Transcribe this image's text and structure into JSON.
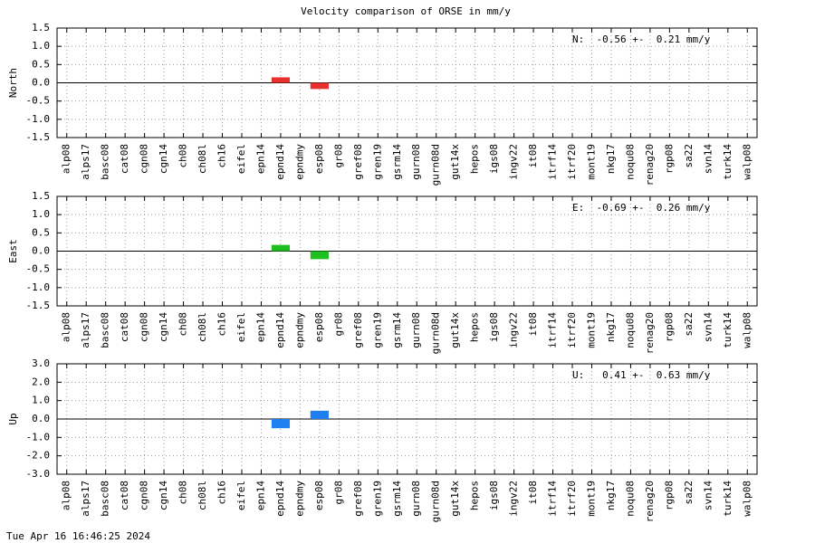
{
  "title": "Velocity comparison of ORSE in mm/y",
  "timestamp": "Tue Apr 16 16:46:25 2024",
  "chart_data": [
    {
      "type": "bar",
      "ylabel": "North",
      "annotation": "N:  -0.56 +-  0.21 mm/y",
      "categories": [
        "alp08",
        "alps17",
        "basc08",
        "cat08",
        "cgn08",
        "cgn14",
        "ch08",
        "ch08l",
        "ch16",
        "eifel",
        "epn14",
        "epnd14",
        "epndmy",
        "esp08",
        "gr08",
        "gref08",
        "gren19",
        "gsrm14",
        "gurn08",
        "gurn08d",
        "gut14x",
        "hepos",
        "igs08",
        "ingv22",
        "it08",
        "itrf14",
        "itrf20",
        "mont19",
        "nkg17",
        "noqu08",
        "renag20",
        "rgp08",
        "sa22",
        "svn14",
        "turk14",
        "walp08"
      ],
      "values": [
        null,
        null,
        null,
        null,
        null,
        null,
        null,
        null,
        null,
        null,
        null,
        0.15,
        null,
        -0.17,
        null,
        null,
        null,
        null,
        null,
        null,
        null,
        null,
        null,
        null,
        null,
        null,
        null,
        null,
        null,
        null,
        null,
        null,
        null,
        null,
        null,
        null
      ],
      "color": "#e8312f",
      "ylim": [
        -1.5,
        1.5
      ],
      "yticks": [
        -1.5,
        {
          "value": -1,
          "label": "-1.0"
        },
        -0.5,
        {
          "value": 0,
          "label": "0.0"
        },
        0.5,
        {
          "value": 1,
          "label": "1.0"
        },
        1.5
      ],
      "grid": true
    },
    {
      "type": "bar",
      "ylabel": "East",
      "annotation": "E:  -0.69 +-  0.26 mm/y",
      "categories": [
        "alp08",
        "alps17",
        "basc08",
        "cat08",
        "cgn08",
        "cgn14",
        "ch08",
        "ch08l",
        "ch16",
        "eifel",
        "epn14",
        "epnd14",
        "epndmy",
        "esp08",
        "gr08",
        "gref08",
        "gren19",
        "gsrm14",
        "gurn08",
        "gurn08d",
        "gut14x",
        "hepos",
        "igs08",
        "ingv22",
        "it08",
        "itrf14",
        "itrf20",
        "mont19",
        "nkg17",
        "noqu08",
        "renag20",
        "rgp08",
        "sa22",
        "svn14",
        "turk14",
        "walp08"
      ],
      "values": [
        null,
        null,
        null,
        null,
        null,
        null,
        null,
        null,
        null,
        null,
        null,
        0.17,
        null,
        -0.22,
        null,
        null,
        null,
        null,
        null,
        null,
        null,
        null,
        null,
        null,
        null,
        null,
        null,
        null,
        null,
        null,
        null,
        null,
        null,
        null,
        null,
        null
      ],
      "color": "#1fbf1f",
      "ylim": [
        -1.5,
        1.5
      ],
      "yticks": [
        -1.5,
        {
          "value": -1,
          "label": "-1.0"
        },
        -0.5,
        {
          "value": 0,
          "label": "0.0"
        },
        0.5,
        {
          "value": 1,
          "label": "1.0"
        },
        1.5
      ],
      "grid": true
    },
    {
      "type": "bar",
      "ylabel": "Up",
      "annotation": "U:   0.41 +-  0.63 mm/y",
      "categories": [
        "alp08",
        "alps17",
        "basc08",
        "cat08",
        "cgn08",
        "cgn14",
        "ch08",
        "ch08l",
        "ch16",
        "eifel",
        "epn14",
        "epnd14",
        "epndmy",
        "esp08",
        "gr08",
        "gref08",
        "gren19",
        "gsrm14",
        "gurn08",
        "gurn08d",
        "gut14x",
        "hepos",
        "igs08",
        "ingv22",
        "it08",
        "itrf14",
        "itrf20",
        "mont19",
        "nkg17",
        "noqu08",
        "renag20",
        "rgp08",
        "sa22",
        "svn14",
        "turk14",
        "walp08"
      ],
      "values": [
        null,
        null,
        null,
        null,
        null,
        null,
        null,
        null,
        null,
        null,
        null,
        -0.5,
        null,
        0.45,
        null,
        null,
        null,
        null,
        null,
        null,
        null,
        null,
        null,
        null,
        null,
        null,
        null,
        null,
        null,
        null,
        null,
        null,
        null,
        null,
        null,
        null
      ],
      "color": "#1e7ff0",
      "ylim": [
        -3,
        3
      ],
      "yticks": [
        {
          "value": -3,
          "label": "-3.0"
        },
        {
          "value": -2,
          "label": "-2.0"
        },
        {
          "value": -1,
          "label": "-1.0"
        },
        {
          "value": 0,
          "label": "0.0"
        },
        {
          "value": 1,
          "label": "1.0"
        },
        {
          "value": 2,
          "label": "2.0"
        },
        {
          "value": 3,
          "label": "3.0"
        }
      ],
      "grid": true
    }
  ]
}
